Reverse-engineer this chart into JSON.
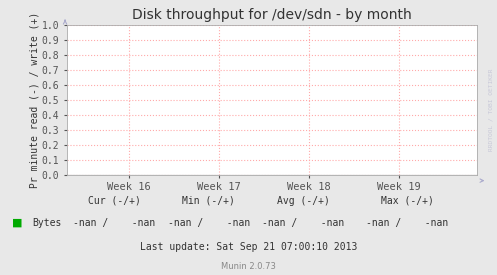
{
  "title": "Disk throughput for /dev/sdn - by month",
  "ylabel": "Pr minute read (-) / write (+)",
  "ylim": [
    0.0,
    1.0
  ],
  "yticks": [
    0.0,
    0.1,
    0.2,
    0.3,
    0.4,
    0.5,
    0.6,
    0.7,
    0.8,
    0.9,
    1.0
  ],
  "xtick_labels": [
    "Week 16",
    "Week 17",
    "Week 18",
    "Week 19"
  ],
  "bg_color": "#e8e8e8",
  "plot_bg_color": "#ffffff",
  "grid_color": "#ffaaaa",
  "border_color": "#aaaaaa",
  "title_color": "#333333",
  "legend_label": "Bytes",
  "legend_color": "#00aa00",
  "last_update": "Last update: Sat Sep 21 07:00:10 2013",
  "munin_version": "Munin 2.0.73",
  "watermark": "RRDTOOL / TOBI OETIKER",
  "axis_arrow_color": "#aaaacc",
  "tick_label_color": "#555555",
  "col_headers": [
    "Cur (-/+)",
    "Min (-/+)",
    "Avg (-/+)",
    "Max (-/+)"
  ],
  "col_values": [
    "-nan /    -nan",
    "-nan /    -nan",
    "-nan /    -nan",
    "-nan /    -nan"
  ]
}
